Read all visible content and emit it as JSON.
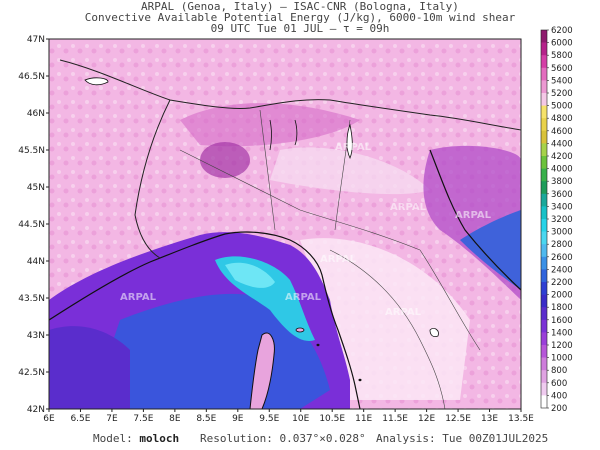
{
  "header": {
    "line1": "ARPAL (Genoa, Italy)  –  ISAC-CNR (Bologna, Italy)",
    "line2": "Convective Available Potential Energy (J/kg), 6000-10m wind shear",
    "line3": "09 UTC Tue 01 JUL  –  τ = 09h"
  },
  "map": {
    "lat_labels": [
      "47N",
      "46.5N",
      "46N",
      "45.5N",
      "45N",
      "44.5N",
      "44N",
      "43.5N",
      "43N",
      "42.5N",
      "42N"
    ],
    "lon_labels": [
      "6E",
      "6.5E",
      "7E",
      "7.5E",
      "8E",
      "8.5E",
      "9E",
      "9.5E",
      "10E",
      "10.5E",
      "11E",
      "11.5E",
      "12E",
      "12.5E",
      "13E",
      "13.5E"
    ],
    "watermark": "ARPAL",
    "sea_color": "#7a2fd8",
    "land_color": "#f3b7e4"
  },
  "colorbar": {
    "labels": [
      "6200",
      "6000",
      "5800",
      "5600",
      "5400",
      "5200",
      "5000",
      "4800",
      "4600",
      "4400",
      "4200",
      "4000",
      "3800",
      "3600",
      "3400",
      "3200",
      "3000",
      "2800",
      "2600",
      "2400",
      "2200",
      "2000",
      "1800",
      "1600",
      "1400",
      "1200",
      "1000",
      "800",
      "600",
      "400",
      "200"
    ],
    "colors": [
      "#8e1b6d",
      "#b5228a",
      "#d43ea6",
      "#e36cbe",
      "#ec99d2",
      "#f4c8e6",
      "#f5e26a",
      "#e9d24a",
      "#d8c23a",
      "#a6d24a",
      "#6cc33c",
      "#38b04a",
      "#1e9c5a",
      "#1aa89a",
      "#18c1c7",
      "#27d3e8",
      "#4ad7f0",
      "#4fb9ee",
      "#3a90e6",
      "#3064dc",
      "#2e3fd3",
      "#3a2bc8",
      "#5a2dcc",
      "#7b33d6",
      "#9a3fd9",
      "#b656d9",
      "#ce7ddb",
      "#e0a3e2",
      "#efcbef",
      "#ffffff"
    ]
  },
  "footer": {
    "model_label": "Model:",
    "model_value": "moloch",
    "resolution_label": "Resolution:",
    "resolution_value": "0.037°×0.028°",
    "analysis_label": "Analysis:",
    "analysis_value": "Tue 00Z01JUL2025"
  }
}
